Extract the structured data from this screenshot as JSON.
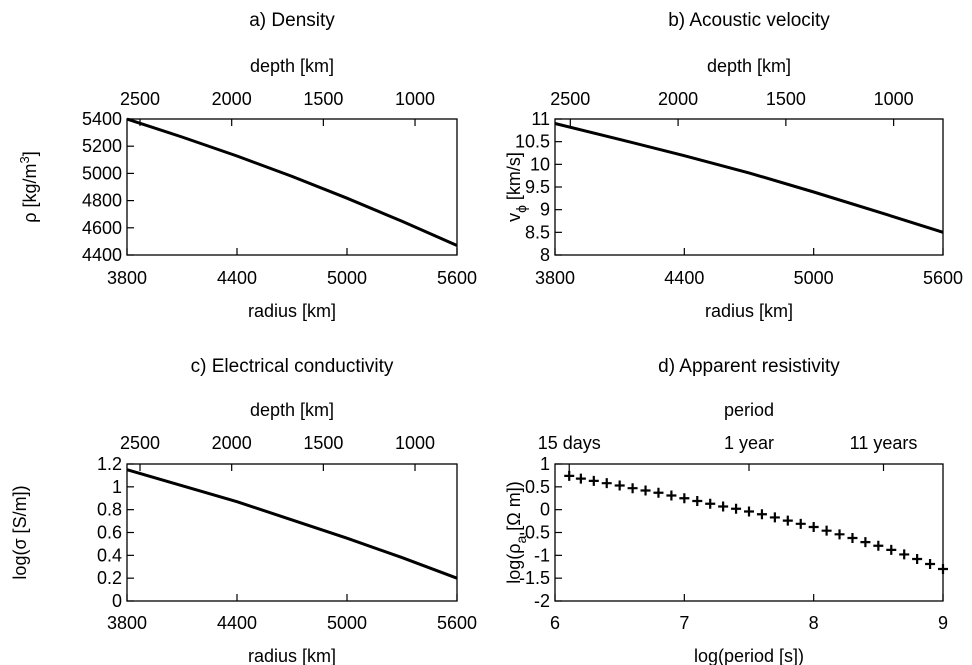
{
  "chart_data": [
    {
      "type": "line",
      "title": "a) Density",
      "xlabel": "radius [km]",
      "ylabel": "ρ [kg/m",
      "ylabel_sup": "3",
      "ylabel_tail": "]",
      "x2label": "depth [km]",
      "xlim": [
        3800,
        5600
      ],
      "ylim": [
        4400,
        5400
      ],
      "xticks": [
        "3800",
        "4400",
        "5000",
        "5600"
      ],
      "yticks": [
        "4400",
        "4600",
        "4800",
        "5000",
        "5200",
        "5400"
      ],
      "x2ticks": [
        "2500",
        "2000",
        "1500",
        "1000"
      ],
      "x2_tick_radius": [
        3871,
        4371,
        4871,
        5371
      ],
      "grid": false,
      "series": [
        {
          "x": [
            3800,
            4100,
            4400,
            4700,
            5000,
            5300,
            5600
          ],
          "y": [
            5400,
            5268,
            5128,
            4978,
            4818,
            4648,
            4470
          ]
        }
      ]
    },
    {
      "type": "line",
      "title": "b) Acoustic velocity",
      "xlabel": "radius [km]",
      "ylabel": "v",
      "ylabel_sub": "ϕ",
      "ylabel_tail": " [km/s]",
      "x2label": "depth [km]",
      "xlim": [
        3800,
        5600
      ],
      "ylim": [
        8,
        11
      ],
      "xticks": [
        "3800",
        "4400",
        "5000",
        "5600"
      ],
      "yticks": [
        "8",
        "8.5",
        "9",
        "9.5",
        "10",
        "10.5",
        "11"
      ],
      "x2ticks": [
        "2500",
        "2000",
        "1500",
        "1000"
      ],
      "x2_tick_radius": [
        3871,
        4371,
        4871,
        5371
      ],
      "grid": false,
      "series": [
        {
          "x": [
            3800,
            4100,
            4400,
            4700,
            5000,
            5300,
            5600
          ],
          "y": [
            10.9,
            10.55,
            10.19,
            9.81,
            9.39,
            8.95,
            8.5
          ]
        }
      ]
    },
    {
      "type": "line",
      "title": "c) Electrical conductivity",
      "xlabel": "radius [km]",
      "ylabel": "log(σ [S/m])",
      "x2label": "depth [km]",
      "xlim": [
        3800,
        5600
      ],
      "ylim": [
        0,
        1.2
      ],
      "xticks": [
        "3800",
        "4400",
        "5000",
        "5600"
      ],
      "yticks": [
        "0",
        "0.2",
        "0.4",
        "0.6",
        "0.8",
        "1",
        "1.2"
      ],
      "x2ticks": [
        "2500",
        "2000",
        "1500",
        "1000"
      ],
      "x2_tick_radius": [
        3871,
        4371,
        4871,
        5371
      ],
      "grid": false,
      "series": [
        {
          "x": [
            3800,
            4100,
            4400,
            4700,
            5000,
            5300,
            5600
          ],
          "y": [
            1.15,
            1.01,
            0.87,
            0.71,
            0.55,
            0.38,
            0.2
          ]
        }
      ]
    },
    {
      "type": "scatter",
      "title": "d) Apparent resistivity",
      "xlabel": "log(period [s])",
      "ylabel": "log(ρ",
      "ylabel_sub": "a",
      "ylabel_tail": " [Ω m])",
      "x2label": "period",
      "xlim": [
        6,
        9
      ],
      "ylim": [
        -2,
        1
      ],
      "xticks": [
        "6",
        "7",
        "8",
        "9"
      ],
      "yticks": [
        "-2",
        "-1.5",
        "-1",
        "-0.5",
        "0",
        "0.5",
        "1"
      ],
      "x2ticks": [
        "15 days",
        "1 year",
        "11 years"
      ],
      "x2_tick_logperiod": [
        6.11,
        7.5,
        8.54
      ],
      "grid": false,
      "series": [
        {
          "x": [
            6.11,
            6.2,
            6.3,
            6.4,
            6.5,
            6.6,
            6.7,
            6.8,
            6.9,
            7.0,
            7.1,
            7.2,
            7.3,
            7.4,
            7.5,
            7.6,
            7.7,
            7.8,
            7.9,
            8.0,
            8.1,
            8.2,
            8.3,
            8.4,
            8.5,
            8.6,
            8.7,
            8.8,
            8.9,
            9.0
          ],
          "y": [
            0.74,
            0.68,
            0.63,
            0.58,
            0.53,
            0.47,
            0.42,
            0.37,
            0.31,
            0.25,
            0.19,
            0.13,
            0.07,
            0.02,
            -0.04,
            -0.1,
            -0.17,
            -0.24,
            -0.31,
            -0.38,
            -0.46,
            -0.54,
            -0.62,
            -0.71,
            -0.79,
            -0.88,
            -0.98,
            -1.08,
            -1.19,
            -1.3
          ]
        }
      ]
    }
  ]
}
